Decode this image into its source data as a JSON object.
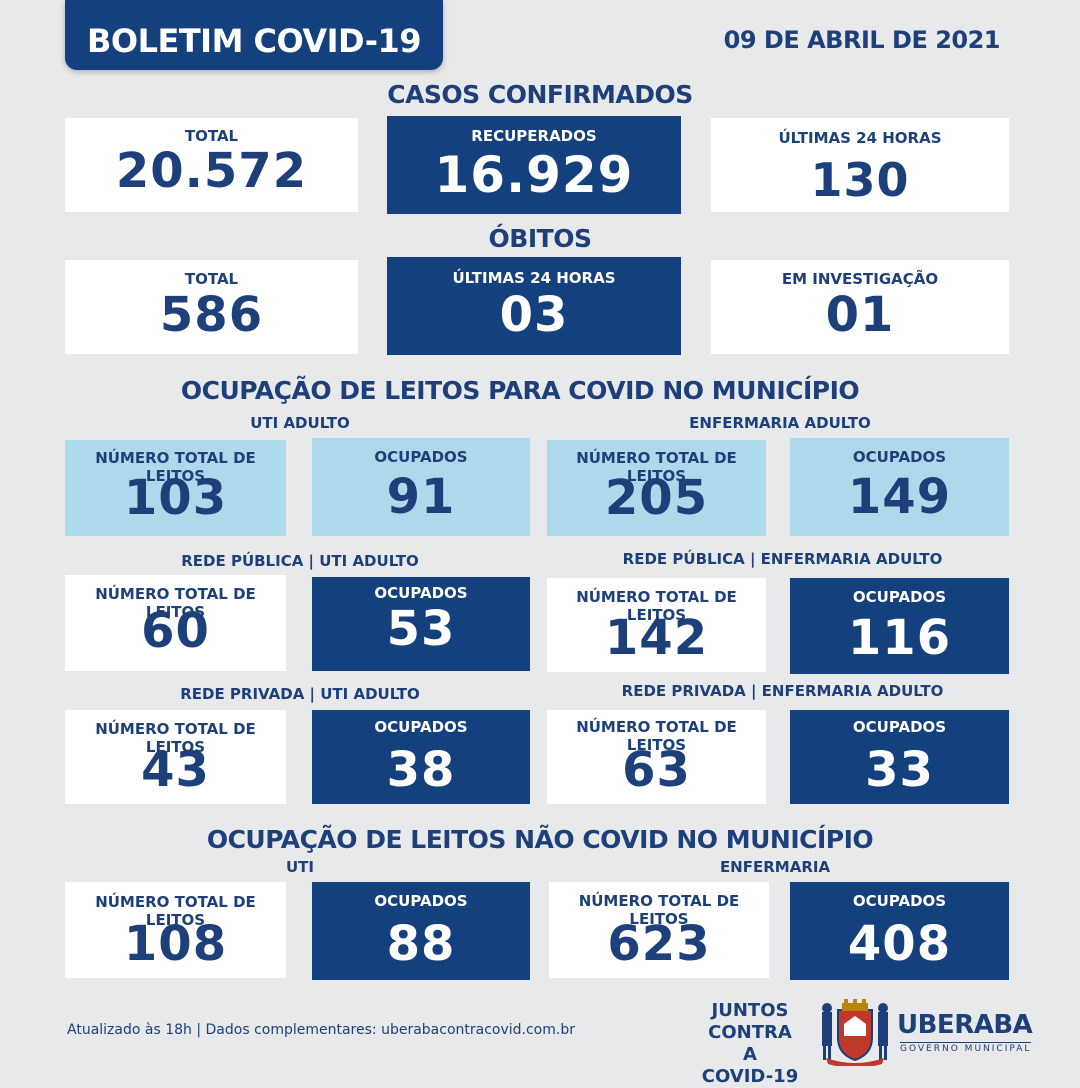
{
  "header": {
    "title": "BOLETIM COVID-19",
    "date": "09 DE ABRIL DE 2021"
  },
  "casos": {
    "title": "CASOS CONFIRMADOS",
    "total_label": "TOTAL",
    "total_value": "20.572",
    "recuperados_label": "RECUPERADOS",
    "recuperados_value": "16.929",
    "ultimas_label": "ÚLTIMAS 24 HORAS",
    "ultimas_value": "130"
  },
  "obitos": {
    "title": "ÓBITOS",
    "total_label": "TOTAL",
    "total_value": "586",
    "ultimas_label": "ÚLTIMAS 24 HORAS",
    "ultimas_value": "03",
    "investigacao_label": "EM INVESTIGAÇÃO",
    "investigacao_value": "01"
  },
  "covid_beds": {
    "title": "OCUPAÇÃO DE LEITOS PARA COVID NO MUNICÍPIO",
    "total_label": "NÚMERO TOTAL DE LEITOS",
    "ocupados_label": "OCUPADOS",
    "uti_adulto": {
      "label": "UTI ADULTO",
      "total": "103",
      "ocupados": "91"
    },
    "enfermaria_adulto": {
      "label": "ENFERMARIA ADULTO",
      "total": "205",
      "ocupados": "149"
    },
    "publica_uti": {
      "label": "REDE PÚBLICA | UTI ADULTO",
      "total": "60",
      "ocupados": "53"
    },
    "publica_enf": {
      "label": "REDE PÚBLICA | ENFERMARIA ADULTO",
      "total": "142",
      "ocupados": "116"
    },
    "privada_uti": {
      "label": "REDE PRIVADA | UTI ADULTO",
      "total": "43",
      "ocupados": "38"
    },
    "privada_enf": {
      "label": "REDE PRIVADA | ENFERMARIA ADULTO",
      "total": "63",
      "ocupados": "33"
    }
  },
  "non_covid_beds": {
    "title": "OCUPAÇÃO DE LEITOS NÃO COVID NO MUNICÍPIO",
    "uti": {
      "label": "UTI",
      "total": "108",
      "ocupados": "88"
    },
    "enfermaria": {
      "label": "ENFERMARIA",
      "total": "623",
      "ocupados": "408"
    }
  },
  "footer": {
    "note": "Atualizado às 18h | Dados complementares: uberabacontracovid.com.br",
    "juntos_line1": "JUNTOS",
    "juntos_line2": "CONTRA A",
    "juntos_line3": "COVID-19",
    "city_name": "UBERABA",
    "city_sub": "GOVERNO MUNICIPAL"
  },
  "colors": {
    "navy": "#14407d",
    "light_blue": "#add9ea",
    "text_blue": "#1d3f7a",
    "background": "#e8e9eb"
  }
}
